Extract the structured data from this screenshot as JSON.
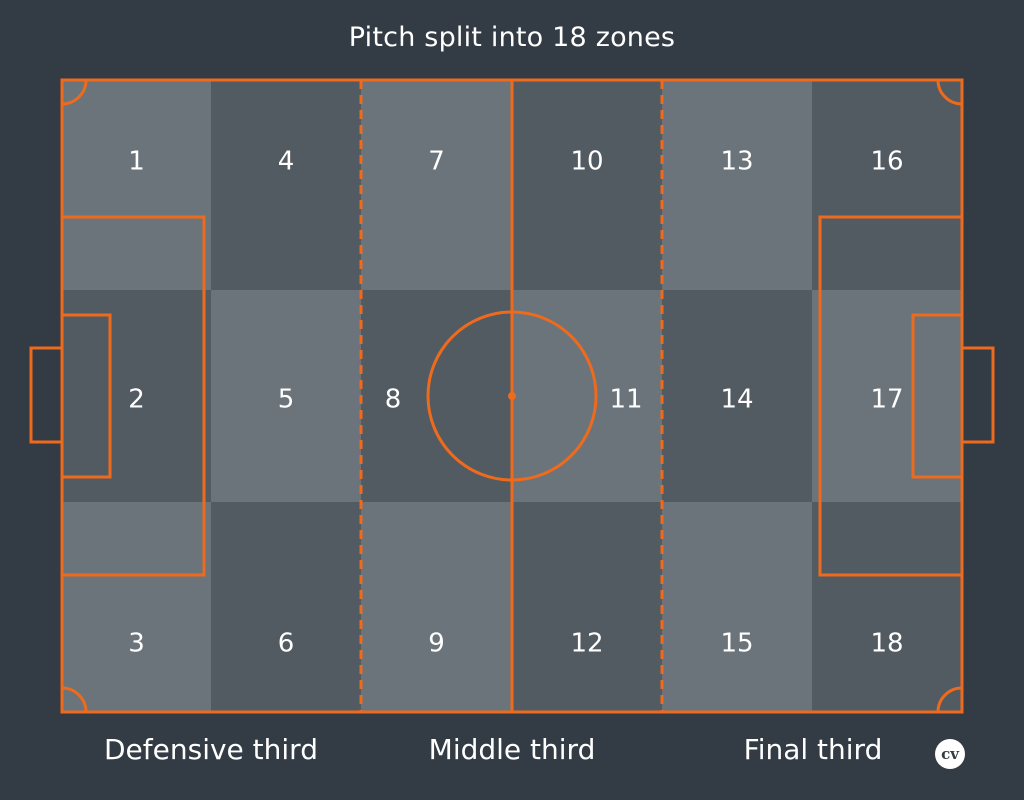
{
  "title": "Pitch split into 18 zones",
  "zones": [
    {
      "label": "1"
    },
    {
      "label": "2"
    },
    {
      "label": "3"
    },
    {
      "label": "4"
    },
    {
      "label": "5"
    },
    {
      "label": "6"
    },
    {
      "label": "7"
    },
    {
      "label": "8"
    },
    {
      "label": "9"
    },
    {
      "label": "10"
    },
    {
      "label": "11"
    },
    {
      "label": "12"
    },
    {
      "label": "13"
    },
    {
      "label": "14"
    },
    {
      "label": "15"
    },
    {
      "label": "16"
    },
    {
      "label": "17"
    },
    {
      "label": "18"
    }
  ],
  "thirds": {
    "defensive": "Defensive third",
    "middle": "Middle third",
    "final": "Final third"
  },
  "logo": "cv",
  "colors": {
    "background": "#333b44",
    "line": "#ee6a1c",
    "zone_light": "#6b747b",
    "zone_dark": "#535b62"
  }
}
